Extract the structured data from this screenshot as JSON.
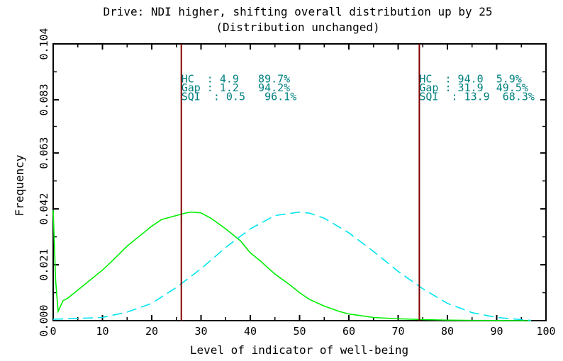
{
  "chart_data": {
    "type": "line",
    "title": "Drive: NDI higher, shifting overall distribution up by 25",
    "subtitle": "(Distribution unchanged)",
    "xlabel": "Level of indicator of well-being",
    "ylabel": "Frequency",
    "xlim": [
      0,
      100
    ],
    "ylim": [
      0,
      0.104
    ],
    "x_ticks": [
      "0",
      "10",
      "20",
      "30",
      "40",
      "50",
      "60",
      "70",
      "80",
      "90",
      "100"
    ],
    "y_ticks": [
      "0.000",
      "0.021",
      "0.042",
      "0.063",
      "0.083",
      "0.104"
    ],
    "series": [
      {
        "style": "solid",
        "color": "#00ee00",
        "x": [
          0,
          0.5,
          1,
          2,
          3,
          5,
          7,
          10,
          12,
          15,
          18,
          20,
          22,
          25,
          27,
          28,
          30,
          32,
          35,
          38,
          40,
          42,
          45,
          48,
          50,
          52,
          55,
          58,
          60,
          65,
          70,
          75,
          80,
          85,
          90,
          97
        ],
        "y": [
          0.0415,
          0.015,
          0.0035,
          0.0075,
          0.0085,
          0.0115,
          0.0145,
          0.019,
          0.0225,
          0.028,
          0.0325,
          0.0355,
          0.038,
          0.0395,
          0.0405,
          0.0408,
          0.0405,
          0.0385,
          0.0345,
          0.03,
          0.0255,
          0.0225,
          0.0175,
          0.0135,
          0.0105,
          0.008,
          0.0055,
          0.0035,
          0.0025,
          0.0012,
          0.0007,
          0.0004,
          0.0002,
          0.0001,
          5e-05,
          0.0
        ]
      },
      {
        "style": "dashed",
        "color": "#00e5ee",
        "x": [
          0,
          10,
          15,
          20,
          25,
          30,
          35,
          40,
          45,
          50,
          52,
          55,
          60,
          65,
          70,
          75,
          80,
          85,
          90,
          95,
          97
        ],
        "y": [
          0.0005,
          0.0012,
          0.0032,
          0.0065,
          0.0125,
          0.0195,
          0.0275,
          0.0345,
          0.0395,
          0.0408,
          0.0404,
          0.0385,
          0.033,
          0.026,
          0.0185,
          0.012,
          0.0065,
          0.003,
          0.0012,
          0.0004,
          0.0001
        ]
      }
    ],
    "vertical_lines": [
      {
        "x": 26,
        "color": "#800000"
      },
      {
        "x": 74.3,
        "color": "#800000"
      }
    ],
    "annotations": [
      {
        "x": 26,
        "y": 0.0895,
        "text": "HC  : 4.9   89.7%"
      },
      {
        "x": 26,
        "y": 0.0862,
        "text": "Gap : 1.2   94.2%"
      },
      {
        "x": 26,
        "y": 0.0829,
        "text": "SQI  : 0.5   96.1%"
      },
      {
        "x": 74.3,
        "y": 0.0895,
        "text": "HC  : 94.0  5.9%"
      },
      {
        "x": 74.3,
        "y": 0.0862,
        "text": "Gap : 31.9  49.5%"
      },
      {
        "x": 74.3,
        "y": 0.0829,
        "text": "SQI  : 13.9  68.3%"
      }
    ],
    "annotation_color": "#008080",
    "grid": false
  }
}
